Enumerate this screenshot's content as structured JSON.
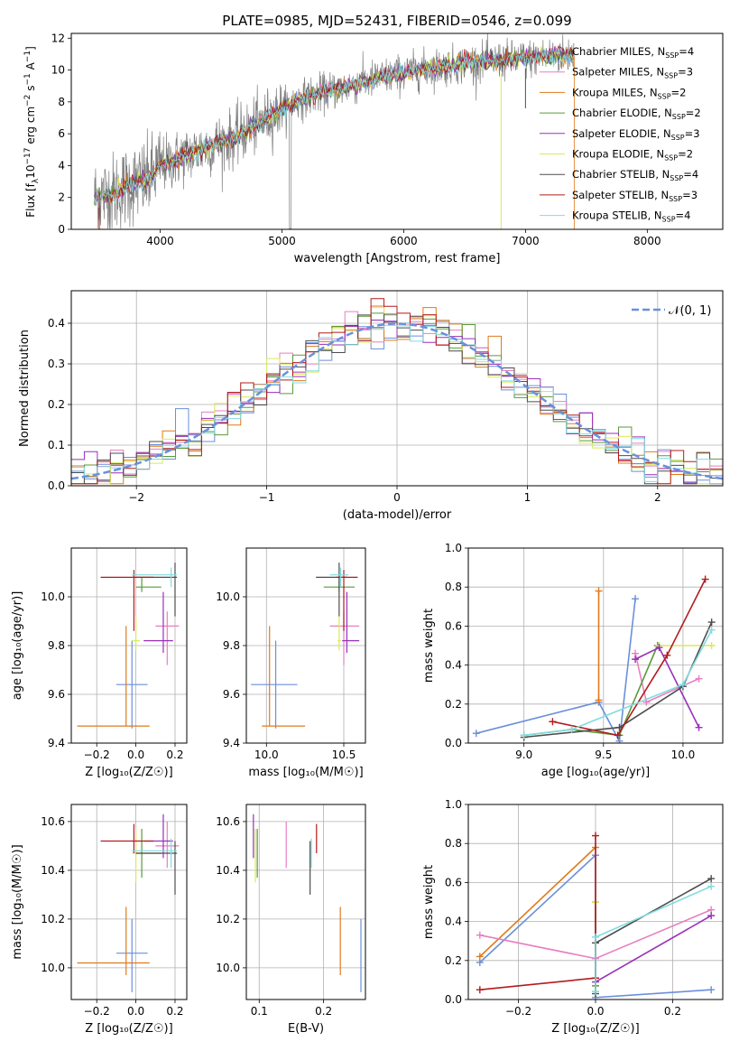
{
  "colors": {
    "Chabrier MILES": "#6a8fdc",
    "Salpeter MILES": "#e77fc1",
    "Kroupa MILES": "#e07a1c",
    "Chabrier ELODIE": "#5a9a3a",
    "Salpeter ELODIE": "#9a2fb8",
    "Kroupa ELODIE": "#d9ea5a",
    "Chabrier STELIB": "#4d4d4d",
    "Salpeter STELIB": "#b31b1b",
    "Kroupa STELIB": "#82dbe0",
    "gaussian": "#6a8fdc",
    "spectrum": "#7f7f7f"
  },
  "chart_data": [
    {
      "id": "spectrum",
      "type": "line",
      "title": "PLATE=0985, MJD=52431, FIBERID=0546, z=0.099",
      "xlabel": "wavelength [Angstrom, rest frame]",
      "ylabel_main": "Flux [f",
      "ylabel_sub": "λ",
      "ylabel_rest": "10",
      "ylabel_sup1": "−17",
      "ylabel_mid": " erg cm",
      "ylabel_sup2": "−2",
      "ylabel_mid2": " s",
      "ylabel_sup3": "−1",
      "ylabel_end": " A",
      "ylabel_sup4": "−1",
      "ylabel_close": "]",
      "xlim": [
        3270,
        8620
      ],
      "ylim": [
        0,
        12.3
      ],
      "xticks": [
        4000,
        5000,
        6000,
        7000,
        8000
      ],
      "yticks": [
        0,
        2,
        4,
        6,
        8,
        10,
        12
      ],
      "continuum": [
        [
          3460,
          2.0
        ],
        [
          3600,
          2.2
        ],
        [
          3700,
          2.6
        ],
        [
          3800,
          2.9
        ],
        [
          3900,
          3.1
        ],
        [
          4000,
          4.0
        ],
        [
          4200,
          4.6
        ],
        [
          4400,
          5.2
        ],
        [
          4600,
          5.7
        ],
        [
          4800,
          6.6
        ],
        [
          5000,
          7.6
        ],
        [
          5200,
          8.3
        ],
        [
          5400,
          8.7
        ],
        [
          5600,
          9.1
        ],
        [
          5800,
          9.5
        ],
        [
          6000,
          9.8
        ],
        [
          6200,
          10.1
        ],
        [
          6400,
          10.3
        ],
        [
          6600,
          10.5
        ],
        [
          6800,
          10.6
        ],
        [
          7000,
          10.7
        ],
        [
          7200,
          10.9
        ],
        [
          7400,
          11.0
        ]
      ],
      "legend": [
        {
          "name": "Chabrier MILES",
          "base": "Chabrier MILES, N",
          "sub": "SSP",
          "tail": "=4"
        },
        {
          "name": "Salpeter MILES",
          "base": "Salpeter MILES, N",
          "sub": "SSP",
          "tail": "=3"
        },
        {
          "name": "Kroupa MILES",
          "base": "Kroupa MILES, N",
          "sub": "SSP",
          "tail": "=2"
        },
        {
          "name": "Chabrier ELODIE",
          "base": "Chabrier ELODIE, N",
          "sub": "SSP",
          "tail": "=2"
        },
        {
          "name": "Salpeter ELODIE",
          "base": "Salpeter ELODIE, N",
          "sub": "SSP",
          "tail": "=3"
        },
        {
          "name": "Kroupa ELODIE",
          "base": "Kroupa ELODIE, N",
          "sub": "SSP",
          "tail": "=2"
        },
        {
          "name": "Chabrier STELIB",
          "base": "Chabrier STELIB, N",
          "sub": "SSP",
          "tail": "=4"
        },
        {
          "name": "Salpeter STELIB",
          "base": "Salpeter STELIB, N",
          "sub": "SSP",
          "tail": "=3"
        },
        {
          "name": "Kroupa STELIB",
          "base": "Kroupa STELIB, N",
          "sub": "SSP",
          "tail": "=4"
        }
      ]
    },
    {
      "id": "residuals",
      "type": "step-histogram",
      "xlabel": "(data-model)/error",
      "ylabel": "Normed distribution",
      "xlim": [
        -2.5,
        2.5
      ],
      "ylim": [
        0,
        0.48
      ],
      "xticks": [
        -2,
        -1,
        0,
        1,
        2
      ],
      "yticks": [
        0.0,
        0.1,
        0.2,
        0.3,
        0.4
      ],
      "legend_label": "𝒩(0, 1)",
      "gaussian": {
        "mean": 0,
        "sigma": 1
      }
    },
    {
      "id": "age_vs_Z",
      "type": "errorbar",
      "xlabel": "Z [log₁₀(Z/Z☉)]",
      "ylabel": "age  [log₁₀(age/yr)]",
      "xlim": [
        -0.33,
        0.26
      ],
      "ylim": [
        9.4,
        10.2
      ],
      "xticks": [
        -0.2,
        0.0,
        0.2
      ],
      "yticks": [
        9.4,
        9.6,
        9.8,
        10.0
      ],
      "points": [
        {
          "series": "Chabrier MILES",
          "x": -0.02,
          "xerr": [
            0.08,
            0.08
          ],
          "y": 9.64,
          "yerr": [
            0.18,
            0.18
          ]
        },
        {
          "series": "Kroupa MILES",
          "x": -0.05,
          "xerr": [
            0.25,
            0.12
          ],
          "y": 9.47,
          "yerr": [
            0.0,
            0.41
          ]
        },
        {
          "series": "Salpeter MILES",
          "x": 0.16,
          "xerr": [
            0.06,
            0.06
          ],
          "y": 9.88,
          "yerr": [
            0.16,
            0.06
          ]
        },
        {
          "series": "Kroupa ELODIE",
          "x": 0.0,
          "xerr": [
            0.02,
            0.02
          ],
          "y": 9.82,
          "yerr": [
            0.04,
            0.1
          ]
        },
        {
          "series": "Salpeter ELODIE",
          "x": 0.14,
          "xerr": [
            0.1,
            0.05
          ],
          "y": 9.82,
          "yerr": [
            0.05,
            0.2
          ]
        },
        {
          "series": "Chabrier ELODIE",
          "x": 0.03,
          "xerr": [
            0.03,
            0.1
          ],
          "y": 10.04,
          "yerr": [
            0.02,
            0.04
          ]
        },
        {
          "series": "Chabrier STELIB",
          "x": 0.2,
          "xerr": [
            0.2,
            0.01
          ],
          "y": 10.08,
          "yerr": [
            0.16,
            0.06
          ]
        },
        {
          "series": "Salpeter STELIB",
          "x": -0.01,
          "xerr": [
            0.17,
            0.1
          ],
          "y": 10.08,
          "yerr": [
            0.22,
            0.03
          ]
        },
        {
          "series": "Kroupa STELIB",
          "x": 0.18,
          "xerr": [
            0.2,
            0.03
          ],
          "y": 10.09,
          "yerr": [
            0.05,
            0.03
          ]
        }
      ]
    },
    {
      "id": "age_vs_mass",
      "type": "errorbar",
      "xlabel": "mass [log₁₀(M/M☉)]",
      "ylabel": "",
      "xlim": [
        9.87,
        10.64
      ],
      "ylim": [
        9.4,
        10.2
      ],
      "xticks": [
        10.0,
        10.5
      ],
      "yticks": [
        9.4,
        9.6,
        9.8,
        10.0
      ],
      "points": [
        {
          "series": "Chabrier MILES",
          "x": 10.06,
          "xerr": [
            0.16,
            0.14
          ],
          "y": 9.64,
          "yerr": [
            0.18,
            0.18
          ]
        },
        {
          "series": "Kroupa MILES",
          "x": 10.02,
          "xerr": [
            0.05,
            0.23
          ],
          "y": 9.47,
          "yerr": [
            0.0,
            0.41
          ]
        },
        {
          "series": "Salpeter MILES",
          "x": 10.5,
          "xerr": [
            0.09,
            0.1
          ],
          "y": 9.88,
          "yerr": [
            0.16,
            0.06
          ]
        },
        {
          "series": "Kroupa ELODIE",
          "x": 10.47,
          "xerr": [
            0.01,
            0.01
          ],
          "y": 9.82,
          "yerr": [
            0.04,
            0.1
          ]
        },
        {
          "series": "Salpeter ELODIE",
          "x": 10.52,
          "xerr": [
            0.03,
            0.08
          ],
          "y": 9.82,
          "yerr": [
            0.05,
            0.2
          ]
        },
        {
          "series": "Chabrier ELODIE",
          "x": 10.47,
          "xerr": [
            0.1,
            0.1
          ],
          "y": 10.04,
          "yerr": [
            0.02,
            0.04
          ]
        },
        {
          "series": "Chabrier STELIB",
          "x": 10.47,
          "xerr": [
            0.15,
            0.05
          ],
          "y": 10.08,
          "yerr": [
            0.16,
            0.06
          ]
        },
        {
          "series": "Salpeter STELIB",
          "x": 10.5,
          "xerr": [
            0.05,
            0.09
          ],
          "y": 10.08,
          "yerr": [
            0.22,
            0.03
          ]
        },
        {
          "series": "Kroupa STELIB",
          "x": 10.48,
          "xerr": [
            0.07,
            0.05
          ],
          "y": 10.09,
          "yerr": [
            0.05,
            0.03
          ]
        }
      ]
    },
    {
      "id": "mass_weight_vs_age",
      "type": "line",
      "xlabel": "age  [log₁₀(age/yr)]",
      "ylabel": "mass weight",
      "xlim": [
        8.65,
        10.25
      ],
      "ylim": [
        0,
        1
      ],
      "xticks": [
        9.0,
        9.5,
        10.0
      ],
      "yticks": [
        0.0,
        0.2,
        0.4,
        0.6,
        0.8,
        1.0
      ],
      "series": [
        {
          "name": "Chabrier MILES",
          "points": [
            [
              8.7,
              0.05
            ],
            [
              9.47,
              0.21
            ],
            [
              9.6,
              0.01
            ],
            [
              9.7,
              0.74
            ]
          ]
        },
        {
          "name": "Kroupa MILES",
          "points": [
            [
              9.47,
              0.22
            ],
            [
              9.47,
              0.78
            ]
          ]
        },
        {
          "name": "Salpeter MILES",
          "points": [
            [
              9.7,
              0.46
            ],
            [
              9.77,
              0.21
            ],
            [
              10.1,
              0.33
            ]
          ]
        },
        {
          "name": "Chabrier ELODIE",
          "points": [
            [
              9.0,
              0.04
            ],
            [
              9.3,
              0.07
            ],
            [
              9.6,
              0.04
            ],
            [
              9.84,
              0.5
            ]
          ]
        },
        {
          "name": "Kroupa ELODIE",
          "points": [
            [
              9.85,
              0.5
            ],
            [
              10.18,
              0.5
            ]
          ]
        },
        {
          "name": "Salpeter ELODIE",
          "points": [
            [
              9.7,
              0.43
            ],
            [
              9.85,
              0.49
            ],
            [
              10.1,
              0.08
            ]
          ]
        },
        {
          "name": "Chabrier STELIB",
          "points": [
            [
              9.0,
              0.03
            ],
            [
              9.6,
              0.08
            ],
            [
              10.0,
              0.29
            ],
            [
              10.18,
              0.62
            ]
          ]
        },
        {
          "name": "Salpeter STELIB",
          "points": [
            [
              9.18,
              0.11
            ],
            [
              9.59,
              0.04
            ],
            [
              9.9,
              0.45
            ],
            [
              10.14,
              0.84
            ]
          ]
        },
        {
          "name": "Kroupa STELIB",
          "points": [
            [
              9.0,
              0.04
            ],
            [
              9.3,
              0.07
            ],
            [
              10.0,
              0.3
            ],
            [
              10.18,
              0.58
            ]
          ]
        }
      ]
    },
    {
      "id": "mass_vs_Z",
      "type": "errorbar",
      "xlabel": "Z [log₁₀(Z/Z☉)]",
      "ylabel": "mass [log₁₀(M/M☉)]",
      "xlim": [
        -0.33,
        0.26
      ],
      "ylim": [
        9.87,
        10.67
      ],
      "xticks": [
        -0.2,
        0.0,
        0.2
      ],
      "yticks": [
        10.0,
        10.2,
        10.4,
        10.6
      ],
      "points": [
        {
          "series": "Chabrier MILES",
          "x": -0.02,
          "xerr": [
            0.08,
            0.08
          ],
          "y": 10.06,
          "yerr": [
            0.16,
            0.14
          ]
        },
        {
          "series": "Kroupa MILES",
          "x": -0.05,
          "xerr": [
            0.25,
            0.12
          ],
          "y": 10.02,
          "yerr": [
            0.05,
            0.23
          ]
        },
        {
          "series": "Salpeter MILES",
          "x": 0.16,
          "xerr": [
            0.06,
            0.06
          ],
          "y": 10.5,
          "yerr": [
            0.09,
            0.1
          ]
        },
        {
          "series": "Kroupa ELODIE",
          "x": 0.0,
          "xerr": [
            0.02,
            0.02
          ],
          "y": 10.47,
          "yerr": [
            0.12,
            0.1
          ]
        },
        {
          "series": "Salpeter ELODIE",
          "x": 0.14,
          "xerr": [
            0.1,
            0.05
          ],
          "y": 10.52,
          "yerr": [
            0.07,
            0.11
          ]
        },
        {
          "series": "Chabrier ELODIE",
          "x": 0.03,
          "xerr": [
            0.03,
            0.1
          ],
          "y": 10.47,
          "yerr": [
            0.1,
            0.1
          ]
        },
        {
          "series": "Chabrier STELIB",
          "x": 0.2,
          "xerr": [
            0.2,
            0.01
          ],
          "y": 10.47,
          "yerr": [
            0.17,
            0.05
          ]
        },
        {
          "series": "Salpeter STELIB",
          "x": -0.01,
          "xerr": [
            0.17,
            0.1
          ],
          "y": 10.52,
          "yerr": [
            0.05,
            0.07
          ]
        },
        {
          "series": "Kroupa STELIB",
          "x": 0.18,
          "xerr": [
            0.2,
            0.03
          ],
          "y": 10.48,
          "yerr": [
            0.07,
            0.05
          ]
        }
      ]
    },
    {
      "id": "mass_vs_ebv",
      "type": "errorbar",
      "xlabel": "E(B-V)",
      "ylabel": "",
      "xlim": [
        0.08,
        0.265
      ],
      "ylim": [
        9.87,
        10.67
      ],
      "xticks": [
        0.1,
        0.2
      ],
      "yticks": [
        10.0,
        10.2,
        10.4,
        10.6
      ],
      "points": [
        {
          "series": "Chabrier MILES",
          "x": 0.258,
          "y": 10.06,
          "yerr": [
            0.16,
            0.14
          ]
        },
        {
          "series": "Kroupa MILES",
          "x": 0.226,
          "y": 10.02,
          "yerr": [
            0.05,
            0.23
          ]
        },
        {
          "series": "Salpeter MILES",
          "x": 0.142,
          "y": 10.5,
          "yerr": [
            0.09,
            0.1
          ]
        },
        {
          "series": "Kroupa ELODIE",
          "x": 0.094,
          "y": 10.47,
          "yerr": [
            0.12,
            0.1
          ]
        },
        {
          "series": "Salpeter ELODIE",
          "x": 0.091,
          "y": 10.52,
          "yerr": [
            0.07,
            0.11
          ]
        },
        {
          "series": "Chabrier ELODIE",
          "x": 0.097,
          "y": 10.47,
          "yerr": [
            0.1,
            0.1
          ]
        },
        {
          "series": "Chabrier STELIB",
          "x": 0.179,
          "y": 10.47,
          "yerr": [
            0.17,
            0.05
          ]
        },
        {
          "series": "Salpeter STELIB",
          "x": 0.189,
          "y": 10.52,
          "yerr": [
            0.05,
            0.07
          ]
        },
        {
          "series": "Kroupa STELIB",
          "x": 0.181,
          "y": 10.48,
          "yerr": [
            0.07,
            0.05
          ]
        }
      ]
    },
    {
      "id": "mass_weight_vs_Z",
      "type": "line",
      "xlabel": "Z [log₁₀(Z/Z☉)]",
      "ylabel": "mass weight",
      "xlim": [
        -0.33,
        0.33
      ],
      "ylim": [
        0,
        1
      ],
      "xticks": [
        -0.2,
        0.0,
        0.2
      ],
      "yticks": [
        0.0,
        0.2,
        0.4,
        0.6,
        0.8,
        1.0
      ],
      "series": [
        {
          "name": "Chabrier MILES",
          "points": [
            [
              -0.3,
              0.19
            ],
            [
              0.0,
              0.74
            ],
            [
              0.0,
              0.01
            ],
            [
              0.3,
              0.05
            ]
          ]
        },
        {
          "name": "Kroupa MILES",
          "points": [
            [
              -0.3,
              0.22
            ],
            [
              0.0,
              0.78
            ]
          ]
        },
        {
          "name": "Salpeter MILES",
          "points": [
            [
              -0.3,
              0.33
            ],
            [
              0.0,
              0.21
            ],
            [
              0.3,
              0.46
            ]
          ]
        },
        {
          "name": "Chabrier ELODIE",
          "points": [
            [
              0.0,
              0.04
            ],
            [
              0.0,
              0.07
            ],
            [
              0.0,
              0.5
            ]
          ]
        },
        {
          "name": "Kroupa ELODIE",
          "points": [
            [
              0.0,
              0.5
            ],
            [
              0.0,
              0.5
            ]
          ]
        },
        {
          "name": "Salpeter ELODIE",
          "points": [
            [
              0.0,
              0.09
            ],
            [
              0.3,
              0.43
            ]
          ]
        },
        {
          "name": "Chabrier STELIB",
          "points": [
            [
              0.0,
              0.03
            ],
            [
              0.0,
              0.29
            ],
            [
              0.3,
              0.62
            ]
          ]
        },
        {
          "name": "Salpeter STELIB",
          "points": [
            [
              -0.3,
              0.05
            ],
            [
              0.0,
              0.11
            ],
            [
              0.0,
              0.84
            ]
          ]
        },
        {
          "name": "Kroupa STELIB",
          "points": [
            [
              0.0,
              0.04
            ],
            [
              0.0,
              0.32
            ],
            [
              0.3,
              0.58
            ]
          ]
        }
      ]
    }
  ]
}
